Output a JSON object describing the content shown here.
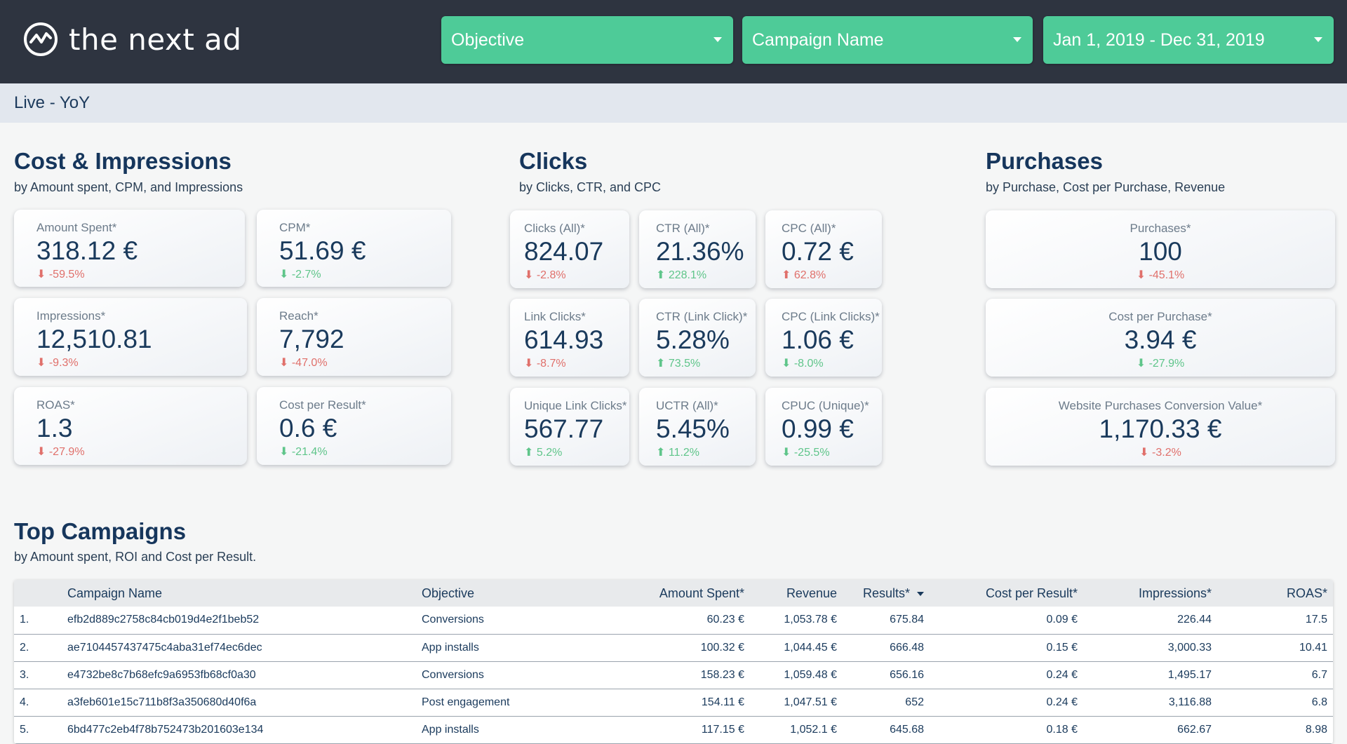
{
  "brand": {
    "name": "the next ad"
  },
  "filters": [
    {
      "label": "Objective"
    },
    {
      "label": "Campaign Name"
    },
    {
      "label": "Jan 1, 2019 - Dec 31, 2019"
    }
  ],
  "subheader": {
    "title": "Live - YoY"
  },
  "sections": {
    "cost": {
      "title": "Cost & Impressions",
      "subtitle": "by Amount spent, CPM, and Impressions",
      "cards": [
        {
          "label": "Amount Spent*",
          "value": "318.12 €",
          "change": "⬇ -59.5%",
          "trend": "down"
        },
        {
          "label": "CPM*",
          "value": "51.69 €",
          "change": "⬇ -2.7%",
          "trend": "up"
        },
        {
          "label": "Impressions*",
          "value": "12,510.81",
          "change": "⬇ -9.3%",
          "trend": "down"
        },
        {
          "label": "Reach*",
          "value": "7,792",
          "change": "⬇ -47.0%",
          "trend": "down"
        },
        {
          "label": "ROAS*",
          "value": "1.3",
          "change": "⬇ -27.9%",
          "trend": "down"
        },
        {
          "label": "Cost per Result*",
          "value": "0.6 €",
          "change": "⬇ -21.4%",
          "trend": "up"
        }
      ]
    },
    "clicks": {
      "title": "Clicks",
      "subtitle": "by Clicks, CTR, and CPC",
      "cards": [
        {
          "label": "Clicks (All)*",
          "value": "824.07",
          "change": "⬇ -2.8%",
          "trend": "down"
        },
        {
          "label": "CTR (All)*",
          "value": "21.36%",
          "change": "⬆ 228.1%",
          "trend": "up"
        },
        {
          "label": "CPC (All)*",
          "value": "0.72 €",
          "change": "⬆ 62.8%",
          "trend": "down"
        },
        {
          "label": "Link Clicks*",
          "value": "614.93",
          "change": "⬇ -8.7%",
          "trend": "down"
        },
        {
          "label": "CTR (Link Click)*",
          "value": "5.28%",
          "change": "⬆ 73.5%",
          "trend": "up"
        },
        {
          "label": "CPC (Link Clicks)*",
          "value": "1.06 €",
          "change": "⬇ -8.0%",
          "trend": "up"
        },
        {
          "label": "Unique Link Clicks*",
          "value": "567.77",
          "change": "⬆ 5.2%",
          "trend": "up"
        },
        {
          "label": "UCTR (All)*",
          "value": "5.45%",
          "change": "⬆ 11.2%",
          "trend": "up"
        },
        {
          "label": "CPUC (Unique)*",
          "value": "0.99 €",
          "change": "⬇ -25.5%",
          "trend": "up"
        }
      ]
    },
    "purchases": {
      "title": "Purchases",
      "subtitle": "by Purchase, Cost per Purchase, Revenue",
      "cards": [
        {
          "label": "Purchases*",
          "value": "100",
          "change": "⬇ -45.1%",
          "trend": "down"
        },
        {
          "label": "Cost per Purchase*",
          "value": "3.94 €",
          "change": "⬇ -27.9%",
          "trend": "up"
        },
        {
          "label": "Website Purchases Conversion Value*",
          "value": "1,170.33 €",
          "change": "⬇ -3.2%",
          "trend": "down"
        }
      ]
    }
  },
  "top_campaigns": {
    "title": "Top Campaigns",
    "subtitle": "by Amount spent, ROI and Cost per Result.",
    "columns": [
      "Campaign Name",
      "Objective",
      "Amount Spent*",
      "Revenue",
      "Results*",
      "Cost per Result*",
      "Impressions*",
      "ROAS*"
    ],
    "rows": [
      {
        "rank": "1.",
        "name": "efb2d889c2758c84cb019d4e2f1beb52",
        "objective": "Conversions",
        "spent": "60.23 €",
        "revenue": "1,053.78 €",
        "results": "675.84",
        "cpr": "0.09 €",
        "impressions": "226.44",
        "roas": "17.5"
      },
      {
        "rank": "2.",
        "name": "ae7104457437475c4aba31ef74ec6dec",
        "objective": "App installs",
        "spent": "100.32 €",
        "revenue": "1,044.45 €",
        "results": "666.48",
        "cpr": "0.15 €",
        "impressions": "3,000.33",
        "roas": "10.41"
      },
      {
        "rank": "3.",
        "name": "e4732be8c7b68efc9a6953fb68cf0a30",
        "objective": "Conversions",
        "spent": "158.23 €",
        "revenue": "1,059.48 €",
        "results": "656.16",
        "cpr": "0.24 €",
        "impressions": "1,495.17",
        "roas": "6.7"
      },
      {
        "rank": "4.",
        "name": "a3feb601e15c711b8f3a350680d40f6a",
        "objective": "Post engagement",
        "spent": "154.11 €",
        "revenue": "1,047.51 €",
        "results": "652",
        "cpr": "0.24 €",
        "impressions": "3,116.88",
        "roas": "6.8"
      },
      {
        "rank": "5.",
        "name": "6bd477c2eb4f78b752473b201603e134",
        "objective": "App installs",
        "spent": "117.15 €",
        "revenue": "1,052.1 €",
        "results": "645.68",
        "cpr": "0.18 €",
        "impressions": "662.67",
        "roas": "8.98"
      }
    ]
  }
}
